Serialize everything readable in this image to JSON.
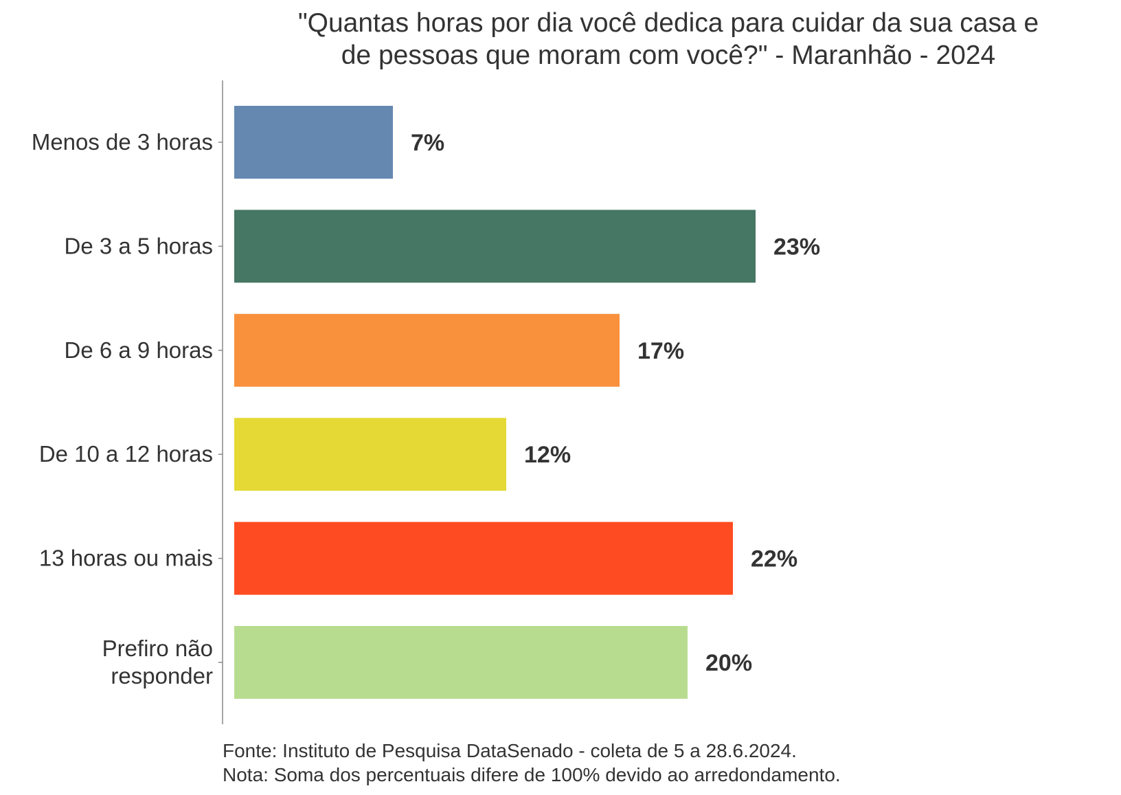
{
  "chart_data": {
    "type": "bar",
    "orientation": "horizontal",
    "title": [
      "\"Quantas horas por dia você dedica para cuidar da sua casa e",
      "de pessoas que moram com você?\" - Maranhão - 2024"
    ],
    "categories": [
      "Menos de 3 horas",
      "De 3 a 5 horas",
      "De 6 a 9 horas",
      "De 10 a 12 horas",
      "13 horas ou mais",
      "Prefiro não responder"
    ],
    "category_lines": [
      [
        "Menos de 3 horas"
      ],
      [
        "De 3 a 5 horas"
      ],
      [
        "De 6 a 9 horas"
      ],
      [
        "De 10 a 12 horas"
      ],
      [
        "13 horas ou mais"
      ],
      [
        "Prefiro não",
        "responder"
      ]
    ],
    "values": [
      7,
      23,
      17,
      12,
      22,
      20
    ],
    "labels": [
      "7%",
      "23%",
      "17%",
      "12%",
      "22%",
      "20%"
    ],
    "colors": [
      "#6588b0",
      "#467664",
      "#f9913c",
      "#e5d935",
      "#ff4b21",
      "#b8dc8f"
    ],
    "xlabel": "",
    "ylabel": "",
    "grid": false,
    "legend": "none"
  },
  "caption": {
    "source": "Fonte: Instituto de Pesquisa DataSenado - coleta de 5 a 28.6.2024.",
    "note": "Nota: Soma dos percentuais difere de 100% devido ao arredondamento."
  }
}
